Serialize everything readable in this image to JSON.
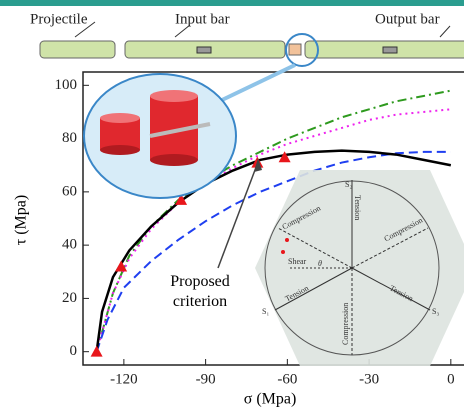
{
  "header": {
    "projectile": "Projectile",
    "input_bar": "Input bar",
    "output_bar": "Output bar"
  },
  "inset": {
    "s1": "S₁",
    "s2": "S₂",
    "s3": "S₃",
    "tension_top": "Tension",
    "tension_left": "Tension",
    "tension_right": "Tension",
    "compression_left": "Compression",
    "compression_right": "Compression",
    "compression_bottom": "Compression",
    "shear": "Shear",
    "theta": "θ"
  },
  "chart_data": {
    "type": "line",
    "x_label": "σ (Mpa)",
    "y_label": "τ (Mpa)",
    "annotation": "Proposed criterion",
    "xlim": [
      -135,
      3
    ],
    "ylim": [
      -5,
      105
    ],
    "xticks": [
      -120,
      -90,
      -60,
      -30,
      0
    ],
    "yticks": [
      0,
      20,
      40,
      60,
      80,
      100
    ],
    "series": [
      {
        "color": "#000000",
        "style": "solid",
        "x": [
          -130,
          -128,
          -124,
          -118,
          -110,
          -100,
          -90,
          -80,
          -70,
          -60,
          -50,
          -40,
          -30,
          -20,
          -10,
          0
        ],
        "values": [
          0,
          15,
          28,
          38,
          47,
          56,
          63,
          68,
          72,
          74,
          75,
          75.5,
          75,
          74,
          72,
          70
        ]
      },
      {
        "color": "#1f3ff0",
        "style": "dashed",
        "x": [
          -130,
          -126,
          -120,
          -110,
          -100,
          -90,
          -80,
          -70,
          -60,
          -50,
          -40,
          -30,
          -20,
          -10,
          0
        ],
        "values": [
          0,
          12,
          24,
          34,
          42,
          49,
          55,
          60,
          64,
          68,
          71,
          73,
          74.5,
          75,
          75
        ]
      },
      {
        "color": "#2e9a1e",
        "style": "dashdot",
        "x": [
          -130,
          -124,
          -118,
          -110,
          -100,
          -90,
          -80,
          -70,
          -60,
          -50,
          -40,
          -30,
          -20,
          -10,
          0
        ],
        "values": [
          0,
          22,
          36,
          47,
          57,
          64,
          70,
          75,
          80,
          84,
          88,
          91,
          94,
          96,
          98
        ]
      },
      {
        "color": "#ee22ee",
        "style": "dotted",
        "x": [
          -130,
          -124,
          -118,
          -110,
          -100,
          -90,
          -80,
          -70,
          -60,
          -50,
          -40,
          -30,
          -20,
          -10,
          0
        ],
        "values": [
          0,
          22,
          35,
          46,
          56,
          63,
          69,
          74,
          78,
          81,
          84,
          87,
          89,
          90,
          91
        ]
      },
      {
        "color": "#e8161b",
        "style": "markers",
        "x": [
          -130,
          -121,
          -99,
          -71,
          -61
        ],
        "values": [
          0,
          32,
          57,
          71,
          73
        ]
      }
    ]
  }
}
